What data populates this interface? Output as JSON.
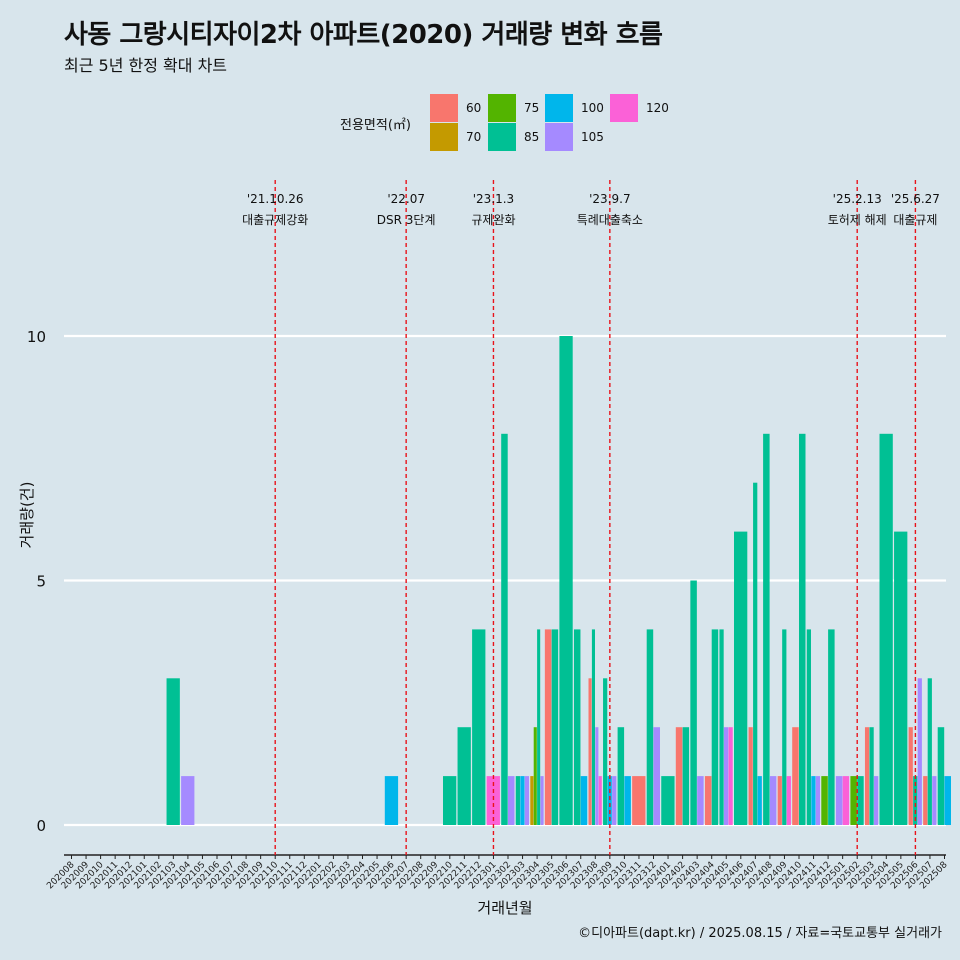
{
  "title": "사동 그랑시티자이2차 아파트(2020) 거래량 변화 흐름",
  "subtitle": "최근 5년 한정 확대 차트",
  "caption": "©디아파트(dapt.kr) / 2025.08.15 / 자료=국토교통부 실거래가",
  "chart_data": {
    "type": "bar",
    "xlabel": "거래년월",
    "ylabel": "거래량(건)",
    "ylim": [
      -0.6,
      13
    ],
    "yticks": [
      0,
      5,
      10
    ],
    "grid": "horizontal",
    "legend": {
      "title": "전용면적(㎡)",
      "placement": "top",
      "entries": [
        {
          "name": "60",
          "color": "#f8766d"
        },
        {
          "name": "70",
          "color": "#c49a00"
        },
        {
          "name": "75",
          "color": "#53b400"
        },
        {
          "name": "85",
          "color": "#00c094"
        },
        {
          "name": "100",
          "color": "#00b6eb"
        },
        {
          "name": "105",
          "color": "#a58aff"
        },
        {
          "name": "120",
          "color": "#fb61d7"
        }
      ]
    },
    "categories": [
      "202008",
      "202009",
      "202010",
      "202011",
      "202012",
      "202101",
      "202102",
      "202103",
      "202104",
      "202105",
      "202106",
      "202107",
      "202108",
      "202109",
      "202110",
      "202111",
      "202112",
      "202201",
      "202202",
      "202203",
      "202204",
      "202205",
      "202206",
      "202207",
      "202208",
      "202209",
      "202210",
      "202211",
      "202212",
      "202301",
      "202302",
      "202303",
      "202304",
      "202305",
      "202306",
      "202307",
      "202308",
      "202309",
      "202310",
      "202311",
      "202312",
      "202401",
      "202402",
      "202403",
      "202404",
      "202405",
      "202406",
      "202407",
      "202408",
      "202409",
      "202410",
      "202411",
      "202412",
      "202501",
      "202502",
      "202503",
      "202504",
      "202505",
      "202506",
      "202507",
      "202508"
    ],
    "series": [
      {
        "name": "60",
        "values": {
          "202305": 4,
          "202308": 3,
          "202311": 1,
          "202402": 2,
          "202404": 1,
          "202407": 2,
          "202409": 1,
          "202410": 2,
          "202503": 2,
          "202506": 2,
          "202507": 1
        }
      },
      {
        "name": "70",
        "values": {
          "202304": 1
        }
      },
      {
        "name": "75",
        "values": {
          "202304": 2,
          "202412": 1,
          "202502": 1
        }
      },
      {
        "name": "85",
        "values": {
          "202103": 3,
          "202210": 1,
          "202211": 2,
          "202212": 4,
          "202302": 8,
          "202303": 1,
          "202304": 4,
          "202305": 4,
          "202306": 10,
          "202307": 4,
          "202308": 4,
          "202309": 3,
          "202310": 2,
          "202312": 4,
          "202401": 1,
          "202402": 2,
          "202403": 5,
          "202404": 4,
          "202405": 4,
          "202406": 6,
          "202407": 7,
          "202408": 8,
          "202409": 4,
          "202410": 8,
          "202411": 4,
          "202412": 4,
          "202502": 1,
          "202503": 2,
          "202504": 8,
          "202505": 6,
          "202506": 1,
          "202507": 3,
          "202508": 2
        }
      },
      {
        "name": "100",
        "values": {
          "202206": 1,
          "202303": 1,
          "202307": 1,
          "202309": 1,
          "202310": 1,
          "202407": 1,
          "202411": 1,
          "202508": 1
        }
      },
      {
        "name": "105",
        "values": {
          "202104": 1,
          "202302": 1,
          "202303": 1,
          "202304": 1,
          "202308": 2,
          "202309": 1,
          "202312": 2,
          "202403": 1,
          "202405": 2,
          "202408": 1,
          "202411": 1,
          "202501": 1,
          "202503": 1,
          "202506": 3,
          "202507": 1
        }
      },
      {
        "name": "120",
        "values": {
          "202301": 1,
          "202308": 1,
          "202405": 2,
          "202409": 1,
          "202501": 1
        }
      }
    ],
    "annotations": [
      {
        "x": "202110",
        "date": "'21.10.26",
        "label": "대출규제강화"
      },
      {
        "x": "202207",
        "date": "'22.07",
        "label": "DSR 3단계"
      },
      {
        "x": "202301",
        "date": "'23.1.3",
        "label": "규제완화"
      },
      {
        "x": "202309",
        "date": "'23.9.7",
        "label": "특례대출축소"
      },
      {
        "x": "202502",
        "date": "'25.2.13",
        "label": "토허제 해제"
      },
      {
        "x": "202506",
        "date": "'25.6.27",
        "label": "대출규제"
      }
    ]
  }
}
